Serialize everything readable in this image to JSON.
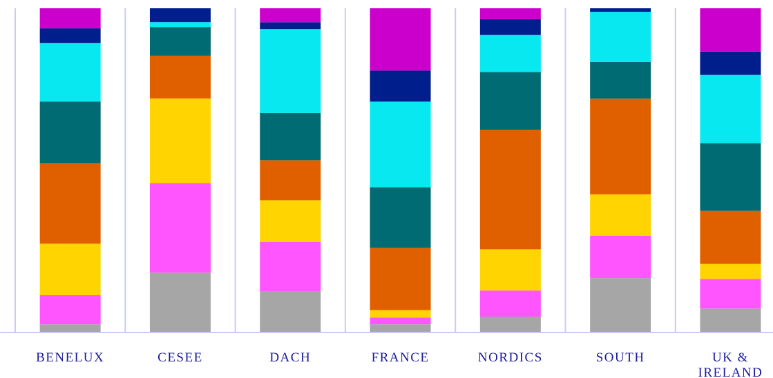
{
  "chart_data": {
    "type": "bar",
    "stacked": true,
    "normalized": true,
    "categories": [
      "BENELUX",
      "CESEE",
      "DACH",
      "FRANCE",
      "NORDICS",
      "SOUTH",
      "UK & IRELAND"
    ],
    "category_lines": [
      [
        "BENELUX"
      ],
      [
        "CESEE"
      ],
      [
        "DACH"
      ],
      [
        "FRANCE"
      ],
      [
        "NORDICS"
      ],
      [
        "SOUTH"
      ],
      [
        "UK &",
        "IRELAND"
      ]
    ],
    "series": [
      {
        "color": "#a6a6a6",
        "values": [
          2.3,
          18.3,
          12.5,
          2.3,
          4.7,
          16.6,
          7.2
        ]
      },
      {
        "color": "#ff55ff",
        "values": [
          9.0,
          27.7,
          15.1,
          2.1,
          8.1,
          13.1,
          9.1
        ]
      },
      {
        "color": "#ffd400",
        "values": [
          15.9,
          26.2,
          12.8,
          2.3,
          12.8,
          12.8,
          4.7
        ]
      },
      {
        "color": "#e06000",
        "values": [
          24.9,
          13.2,
          12.3,
          19.2,
          37.1,
          29.6,
          16.4
        ]
      },
      {
        "color": "#006b73",
        "values": [
          19.0,
          8.9,
          14.5,
          18.7,
          17.9,
          11.3,
          20.9
        ]
      },
      {
        "color": "#07e8f0",
        "values": [
          18.1,
          1.5,
          25.8,
          26.4,
          11.5,
          15.5,
          21.1
        ]
      },
      {
        "color": "#001e8c",
        "values": [
          4.5,
          4.3,
          2.1,
          9.6,
          4.9,
          1.1,
          7.2
        ]
      },
      {
        "color": "#cc00cc",
        "values": [
          6.2,
          0.0,
          4.3,
          19.2,
          3.4,
          0.0,
          13.4
        ]
      }
    ],
    "ylim": [
      0,
      100
    ],
    "grid": "vertical",
    "legend": "none",
    "title": "",
    "xlabel": "",
    "ylabel": ""
  }
}
